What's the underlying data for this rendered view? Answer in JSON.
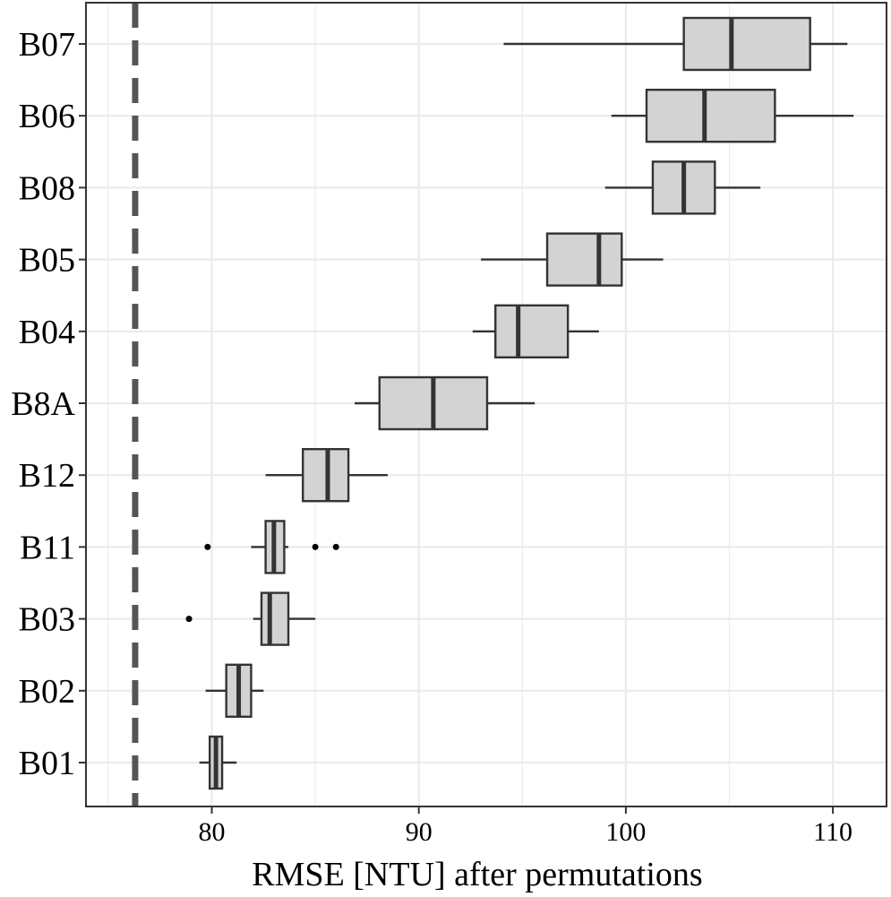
{
  "chart_data": {
    "type": "boxplot",
    "xlabel": "RMSE [NTU] after permutations",
    "ylabel": "",
    "title": "",
    "xlim": [
      74,
      112
    ],
    "xticks": [
      80,
      90,
      100,
      110
    ],
    "grid": true,
    "reference_line": {
      "x": 76.3,
      "style": "dashed",
      "color": "#555555"
    },
    "colors": {
      "box_fill": "#d3d3d3",
      "box_stroke": "#333333",
      "grid": "#ebebeb",
      "panel_border": "#333333"
    },
    "categories": [
      "B07",
      "B06",
      "B08",
      "B05",
      "B04",
      "B8A",
      "B12",
      "B11",
      "B03",
      "B02",
      "B01"
    ],
    "series": [
      {
        "category": "B07",
        "whisker_low": 94.1,
        "q1": 102.8,
        "median": 105.1,
        "q3": 108.9,
        "whisker_high": 110.7,
        "outliers": []
      },
      {
        "category": "B06",
        "whisker_low": 99.3,
        "q1": 101.0,
        "median": 103.8,
        "q3": 107.2,
        "whisker_high": 111.0,
        "outliers": []
      },
      {
        "category": "B08",
        "whisker_low": 99.0,
        "q1": 101.3,
        "median": 102.8,
        "q3": 104.3,
        "whisker_high": 106.5,
        "outliers": []
      },
      {
        "category": "B05",
        "whisker_low": 93.0,
        "q1": 96.2,
        "median": 98.7,
        "q3": 99.8,
        "whisker_high": 101.8,
        "outliers": []
      },
      {
        "category": "B04",
        "whisker_low": 92.6,
        "q1": 93.7,
        "median": 94.8,
        "q3": 97.2,
        "whisker_high": 98.7,
        "outliers": []
      },
      {
        "category": "B8A",
        "whisker_low": 86.9,
        "q1": 88.1,
        "median": 90.7,
        "q3": 93.3,
        "whisker_high": 95.6,
        "outliers": []
      },
      {
        "category": "B12",
        "whisker_low": 82.6,
        "q1": 84.4,
        "median": 85.6,
        "q3": 86.6,
        "whisker_high": 88.5,
        "outliers": []
      },
      {
        "category": "B11",
        "whisker_low": 81.9,
        "q1": 82.6,
        "median": 83.0,
        "q3": 83.5,
        "whisker_high": 83.7,
        "outliers": [
          79.8,
          85.0,
          86.0
        ]
      },
      {
        "category": "B03",
        "whisker_low": 82.0,
        "q1": 82.4,
        "median": 82.8,
        "q3": 83.7,
        "whisker_high": 85.0,
        "outliers": [
          78.9
        ]
      },
      {
        "category": "B02",
        "whisker_low": 79.7,
        "q1": 80.7,
        "median": 81.3,
        "q3": 81.9,
        "whisker_high": 82.5,
        "outliers": []
      },
      {
        "category": "B01",
        "whisker_low": 79.4,
        "q1": 79.9,
        "median": 80.2,
        "q3": 80.5,
        "whisker_high": 81.2,
        "outliers": []
      }
    ]
  }
}
